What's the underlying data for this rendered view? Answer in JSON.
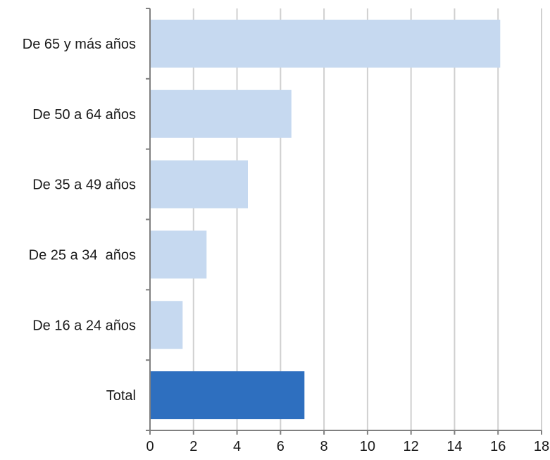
{
  "chart_data": {
    "type": "bar",
    "orientation": "horizontal",
    "title": "",
    "xlabel": "",
    "ylabel": "",
    "categories": [
      "De 65 y más años",
      "De 50 a 64 años",
      "De 35 a 49 años",
      "De 25 a 34  años",
      "De 16 a 24 años",
      "Total"
    ],
    "values": [
      16.1,
      6.5,
      4.5,
      2.6,
      1.5,
      7.1
    ],
    "highlight_category": "Total",
    "xlim": [
      0,
      18
    ],
    "x_ticks": [
      "0",
      "2",
      "4",
      "6",
      "8",
      "10",
      "12",
      "14",
      "16",
      "18"
    ],
    "grid": "vertical",
    "legend": "none",
    "colors": {
      "bar": "#c6d9f0",
      "highlight_bar": "#2e6fbf",
      "grid": "#d0d0d0",
      "axis": "#808080"
    }
  }
}
